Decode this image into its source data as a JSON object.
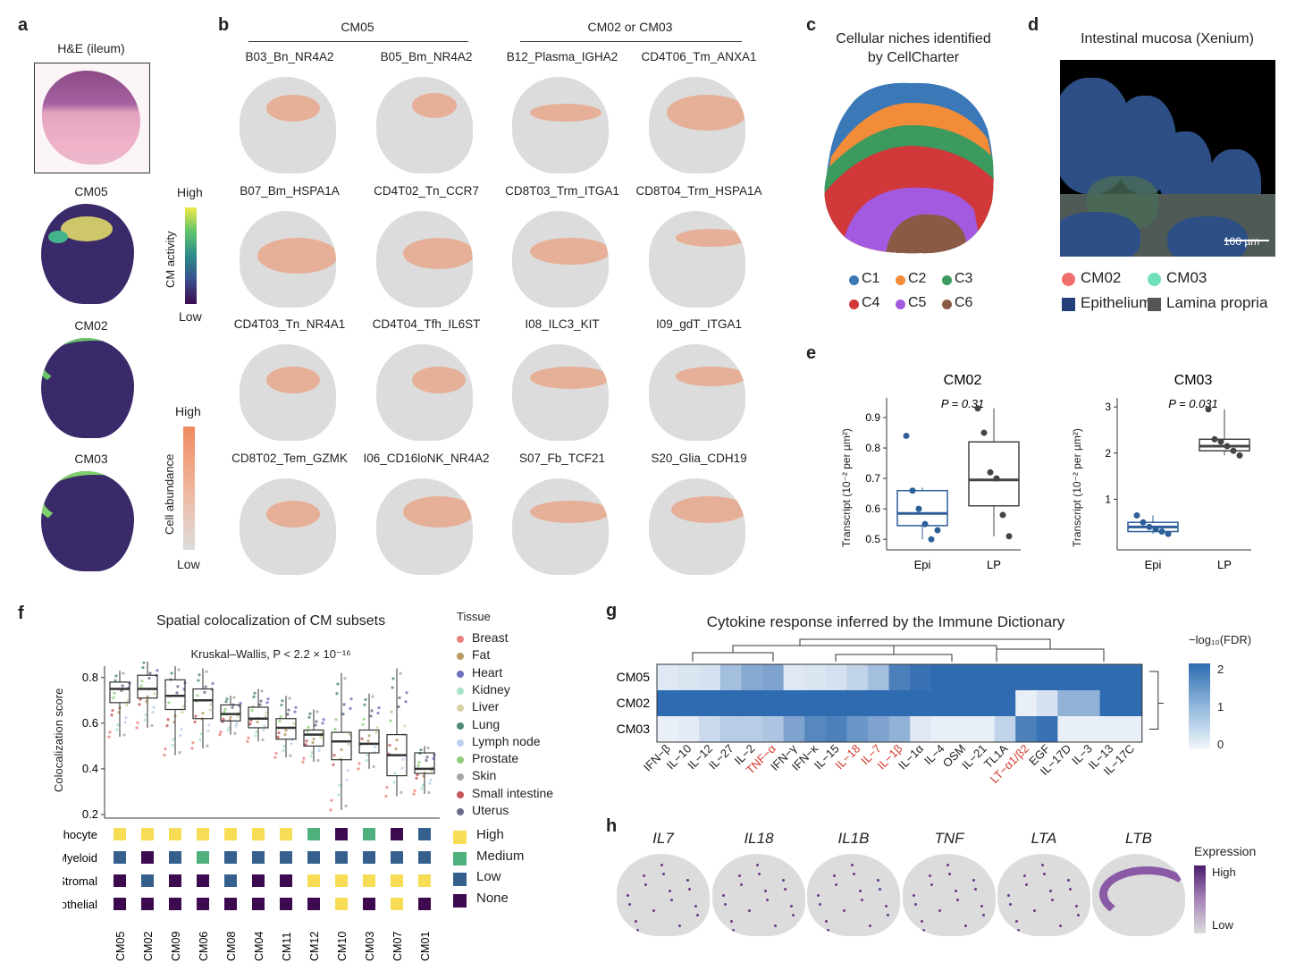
{
  "panels": {
    "a": "a",
    "b": "b",
    "c": "c",
    "d": "d",
    "e": "e",
    "f": "f",
    "g": "g",
    "h": "h"
  },
  "panel_a": {
    "he_title": "H&E (ileum)",
    "maps": [
      "CM05",
      "CM02",
      "CM03"
    ],
    "activity_bar": {
      "label": "CM activity",
      "high": "High",
      "low": "Low"
    },
    "abundance_bar": {
      "label": "Cell abundance",
      "high": "High",
      "low": "Low"
    }
  },
  "panel_b": {
    "group1": "CM05",
    "group2": "CM02 or CM03",
    "rows": [
      [
        "B03_Bn_NR4A2",
        "B05_Bm_NR4A2",
        "B12_Plasma_IGHA2",
        "CD4T06_Tm_ANXA1"
      ],
      [
        "B07_Bm_HSPA1A",
        "CD4T02_Tn_CCR7",
        "CD8T03_Trm_ITGA1",
        "CD8T04_Trm_HSPA1A"
      ],
      [
        "CD4T03_Tn_NR4A1",
        "CD4T04_Tfh_IL6ST",
        "I08_ILC3_KIT",
        "I09_gdT_ITGA1"
      ],
      [
        "CD8T02_Tem_GZMK",
        "I06_CD16loNK_NR4A2",
        "S07_Fb_TCF21",
        "S20_Glia_CDH19"
      ]
    ]
  },
  "panel_c": {
    "title_line1": "Cellular niches identified",
    "title_line2": "by CellCharter",
    "legend": [
      {
        "label": "C1",
        "color": "#3b78b8"
      },
      {
        "label": "C2",
        "color": "#f28c38"
      },
      {
        "label": "C3",
        "color": "#3c9a5f"
      },
      {
        "label": "C4",
        "color": "#d0383a"
      },
      {
        "label": "C5",
        "color": "#a35ae0"
      },
      {
        "label": "C6",
        "color": "#8b5a45"
      }
    ]
  },
  "panel_d": {
    "title": "Intestinal mucosa (Xenium)",
    "scale": "100 µm",
    "legend": [
      {
        "label": "CM02",
        "color": "#ef6f6c",
        "shape": "circle"
      },
      {
        "label": "CM03",
        "color": "#6fe0b8",
        "shape": "circle"
      },
      {
        "label": "Epithelium",
        "color": "#23407a",
        "shape": "square"
      },
      {
        "label": "Lamina propria",
        "color": "#555555",
        "shape": "square"
      }
    ]
  },
  "panel_e": {
    "ylabel": "Transcript (10⁻² per µm²)",
    "plots": [
      {
        "title": "CM02",
        "pval": "P = 0.31",
        "categories": [
          "Epi",
          "LP"
        ],
        "yticks": [
          "0.5",
          "0.6",
          "0.7",
          "0.8",
          "0.9"
        ],
        "ylim": [
          0.48,
          0.95
        ],
        "boxes": [
          {
            "q1": 0.545,
            "median": 0.585,
            "q3": 0.66,
            "min": 0.5,
            "max": 0.67
          },
          {
            "q1": 0.61,
            "median": 0.695,
            "q3": 0.82,
            "min": 0.51,
            "max": 0.93
          }
        ],
        "points": [
          [
            0.84,
            0.66,
            0.6,
            0.55,
            0.5,
            0.53
          ],
          [
            0.93,
            0.85,
            0.72,
            0.7,
            0.58,
            0.51
          ]
        ]
      },
      {
        "title": "CM03",
        "pval": "P = 0.031",
        "categories": [
          "Epi",
          "LP"
        ],
        "yticks": [
          "1",
          "2",
          "3"
        ],
        "ylim": [
          0,
          3.1
        ],
        "boxes": [
          {
            "q1": 0.3,
            "median": 0.4,
            "q3": 0.5,
            "min": 0.25,
            "max": 0.65
          },
          {
            "q1": 2.05,
            "median": 2.15,
            "q3": 2.3,
            "min": 1.95,
            "max": 2.95
          }
        ],
        "points": [
          [
            0.65,
            0.5,
            0.4,
            0.35,
            0.3,
            0.25
          ],
          [
            2.95,
            2.3,
            2.25,
            2.15,
            2.05,
            1.95
          ]
        ]
      }
    ]
  },
  "panel_f": {
    "title": "Spatial colocalization of CM subsets",
    "stat": "Kruskal–Wallis, P < 2.2 × 10⁻¹⁶",
    "ylabel": "Colocalization score",
    "yticks": [
      "0.2",
      "0.4",
      "0.6",
      "0.8"
    ],
    "legend_title": "Tissue",
    "tissues": [
      {
        "label": "Breast",
        "color": "#e8827d"
      },
      {
        "label": "Fat",
        "color": "#b89a63"
      },
      {
        "label": "Heart",
        "color": "#6e6fbd"
      },
      {
        "label": "Kidney",
        "color": "#a7e3c6"
      },
      {
        "label": "Liver",
        "color": "#d7cfa6"
      },
      {
        "label": "Lung",
        "color": "#4f8a76"
      },
      {
        "label": "Lymph node",
        "color": "#bcd0ef"
      },
      {
        "label": "Prostate",
        "color": "#8fcf7a"
      },
      {
        "label": "Skin",
        "color": "#a5a5a5"
      },
      {
        "label": "Small intestine",
        "color": "#c8585a"
      },
      {
        "label": "Uterus",
        "color": "#6a6a8a"
      }
    ],
    "cm_order": [
      "CM05",
      "CM02",
      "CM09",
      "CM06",
      "CM08",
      "CM04",
      "CM11",
      "CM12",
      "CM10",
      "CM03",
      "CM07",
      "CM01"
    ],
    "chart_data": {
      "type": "box",
      "categories": [
        "CM05",
        "CM02",
        "CM09",
        "CM06",
        "CM08",
        "CM04",
        "CM11",
        "CM12",
        "CM10",
        "CM03",
        "CM07",
        "CM01"
      ],
      "ylim": [
        0.2,
        0.85
      ],
      "medians": [
        0.75,
        0.75,
        0.72,
        0.7,
        0.64,
        0.62,
        0.58,
        0.55,
        0.52,
        0.51,
        0.46,
        0.4
      ],
      "q1": [
        0.69,
        0.71,
        0.66,
        0.62,
        0.61,
        0.58,
        0.53,
        0.5,
        0.44,
        0.47,
        0.37,
        0.38
      ],
      "q3": [
        0.78,
        0.81,
        0.79,
        0.75,
        0.68,
        0.67,
        0.62,
        0.57,
        0.56,
        0.57,
        0.55,
        0.47
      ],
      "min": [
        0.54,
        0.58,
        0.46,
        0.49,
        0.55,
        0.52,
        0.45,
        0.43,
        0.22,
        0.4,
        0.28,
        0.29
      ],
      "max": [
        0.83,
        0.89,
        0.85,
        0.84,
        0.72,
        0.75,
        0.72,
        0.66,
        0.82,
        0.73,
        0.84,
        0.5
      ]
    },
    "categories_rows": [
      {
        "label": "Lymphocyte",
        "values": [
          "High",
          "High",
          "High",
          "High",
          "High",
          "High",
          "High",
          "Medium",
          "None",
          "Medium",
          "None",
          "Low"
        ]
      },
      {
        "label": "Myeloid",
        "values": [
          "Low",
          "None",
          "Low",
          "Medium",
          "Low",
          "Low",
          "Low",
          "Low",
          "Low",
          "Low",
          "Low",
          "Low"
        ]
      },
      {
        "label": "Stromal",
        "values": [
          "None",
          "Low",
          "None",
          "None",
          "Low",
          "None",
          "None",
          "High",
          "High",
          "High",
          "High",
          "High"
        ]
      },
      {
        "label": "Endothelial",
        "values": [
          "None",
          "None",
          "None",
          "None",
          "None",
          "None",
          "None",
          "None",
          "High",
          "None",
          "High",
          "None"
        ]
      }
    ],
    "level_legend": [
      {
        "label": "High",
        "color": "#f7dd55"
      },
      {
        "label": "Medium",
        "color": "#4fb07e"
      },
      {
        "label": "Low",
        "color": "#35608d"
      },
      {
        "label": "None",
        "color": "#3d0a4f"
      }
    ]
  },
  "panel_g": {
    "title": "Cytokine response inferred by the Immune Dictionary",
    "legend_title": "−log₁₀(FDR)",
    "legend_ticks": [
      "2",
      "1",
      "0"
    ],
    "rows": [
      "CM05",
      "CM02",
      "CM03"
    ],
    "columns": [
      {
        "label": "IFN−β",
        "red": false
      },
      {
        "label": "IL−10",
        "red": false
      },
      {
        "label": "IL−12",
        "red": false
      },
      {
        "label": "IL−27",
        "red": false
      },
      {
        "label": "IL−2",
        "red": false
      },
      {
        "label": "TNF−α",
        "red": true
      },
      {
        "label": "IFN−γ",
        "red": false
      },
      {
        "label": "IFN−κ",
        "red": false
      },
      {
        "label": "IL−15",
        "red": false
      },
      {
        "label": "IL−18",
        "red": true
      },
      {
        "label": "IL−7",
        "red": true
      },
      {
        "label": "IL−1β",
        "red": true
      },
      {
        "label": "IL−1α",
        "red": false
      },
      {
        "label": "IL−4",
        "red": false
      },
      {
        "label": "OSM",
        "red": false
      },
      {
        "label": "IL−21",
        "red": false
      },
      {
        "label": "TL1A",
        "red": false
      },
      {
        "label": "LT−α1/β2",
        "red": true
      },
      {
        "label": "EGF",
        "red": false
      },
      {
        "label": "IL−17D",
        "red": false
      },
      {
        "label": "IL−3",
        "red": false
      },
      {
        "label": "IL−13",
        "red": false
      },
      {
        "label": "IL−17C",
        "red": false
      }
    ],
    "chart_data": {
      "type": "heatmap",
      "values": [
        [
          0.2,
          0.25,
          0.3,
          0.8,
          1.1,
          1.2,
          0.2,
          0.25,
          0.3,
          0.5,
          0.8,
          1.7,
          1.9,
          2.0,
          2.0,
          2.0,
          2.0,
          2.0,
          2.0,
          2.0,
          2.0,
          2.0,
          2.0
        ],
        [
          2.0,
          2.0,
          2.0,
          2.0,
          2.0,
          2.0,
          2.0,
          2.0,
          2.0,
          2.0,
          2.0,
          2.0,
          2.0,
          2.0,
          2.0,
          2.0,
          2.0,
          0.1,
          0.3,
          1.0,
          1.0,
          2.0,
          2.0
        ],
        [
          0.1,
          0.15,
          0.4,
          0.6,
          0.6,
          0.7,
          1.2,
          1.6,
          1.7,
          1.4,
          1.2,
          1.0,
          0.2,
          0.1,
          0.1,
          0.1,
          0.5,
          1.7,
          1.9,
          0.1,
          0.1,
          0.1,
          0.1
        ]
      ],
      "vmin": 0,
      "vmax": 2
    }
  },
  "panel_h": {
    "genes": [
      "IL7",
      "IL18",
      "IL1B",
      "TNF",
      "LTA",
      "LTB"
    ],
    "legend_title": "Expression",
    "high": "High",
    "low": "Low"
  }
}
